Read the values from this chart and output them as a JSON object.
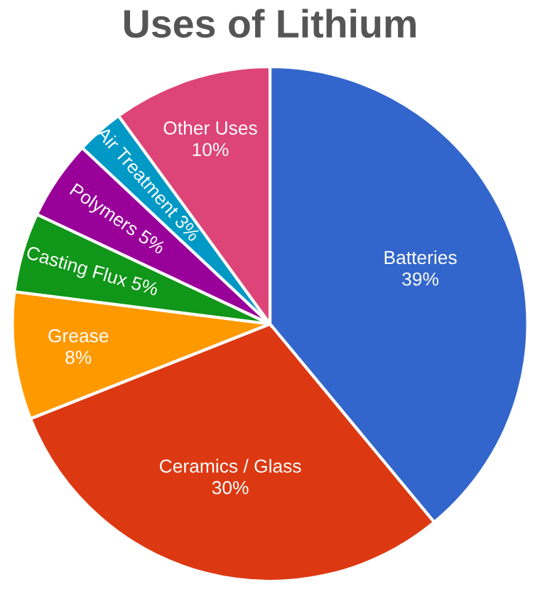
{
  "chart_data": {
    "type": "pie",
    "title": "Uses of Lithium",
    "categories": [
      "Batteries",
      "Ceramics / Glass",
      "Grease",
      "Casting Flux",
      "Polymers",
      "Air Treatment",
      "Other Uses"
    ],
    "values": [
      39,
      30,
      8,
      5,
      5,
      3,
      10
    ],
    "value_labels": [
      "39%",
      "30%",
      "8%",
      "5%",
      "5%",
      "3%",
      "10%"
    ],
    "colors": [
      "#3366cc",
      "#dc3912",
      "#ff9900",
      "#109618",
      "#990099",
      "#0099c6",
      "#dd4477"
    ],
    "legend": false
  }
}
